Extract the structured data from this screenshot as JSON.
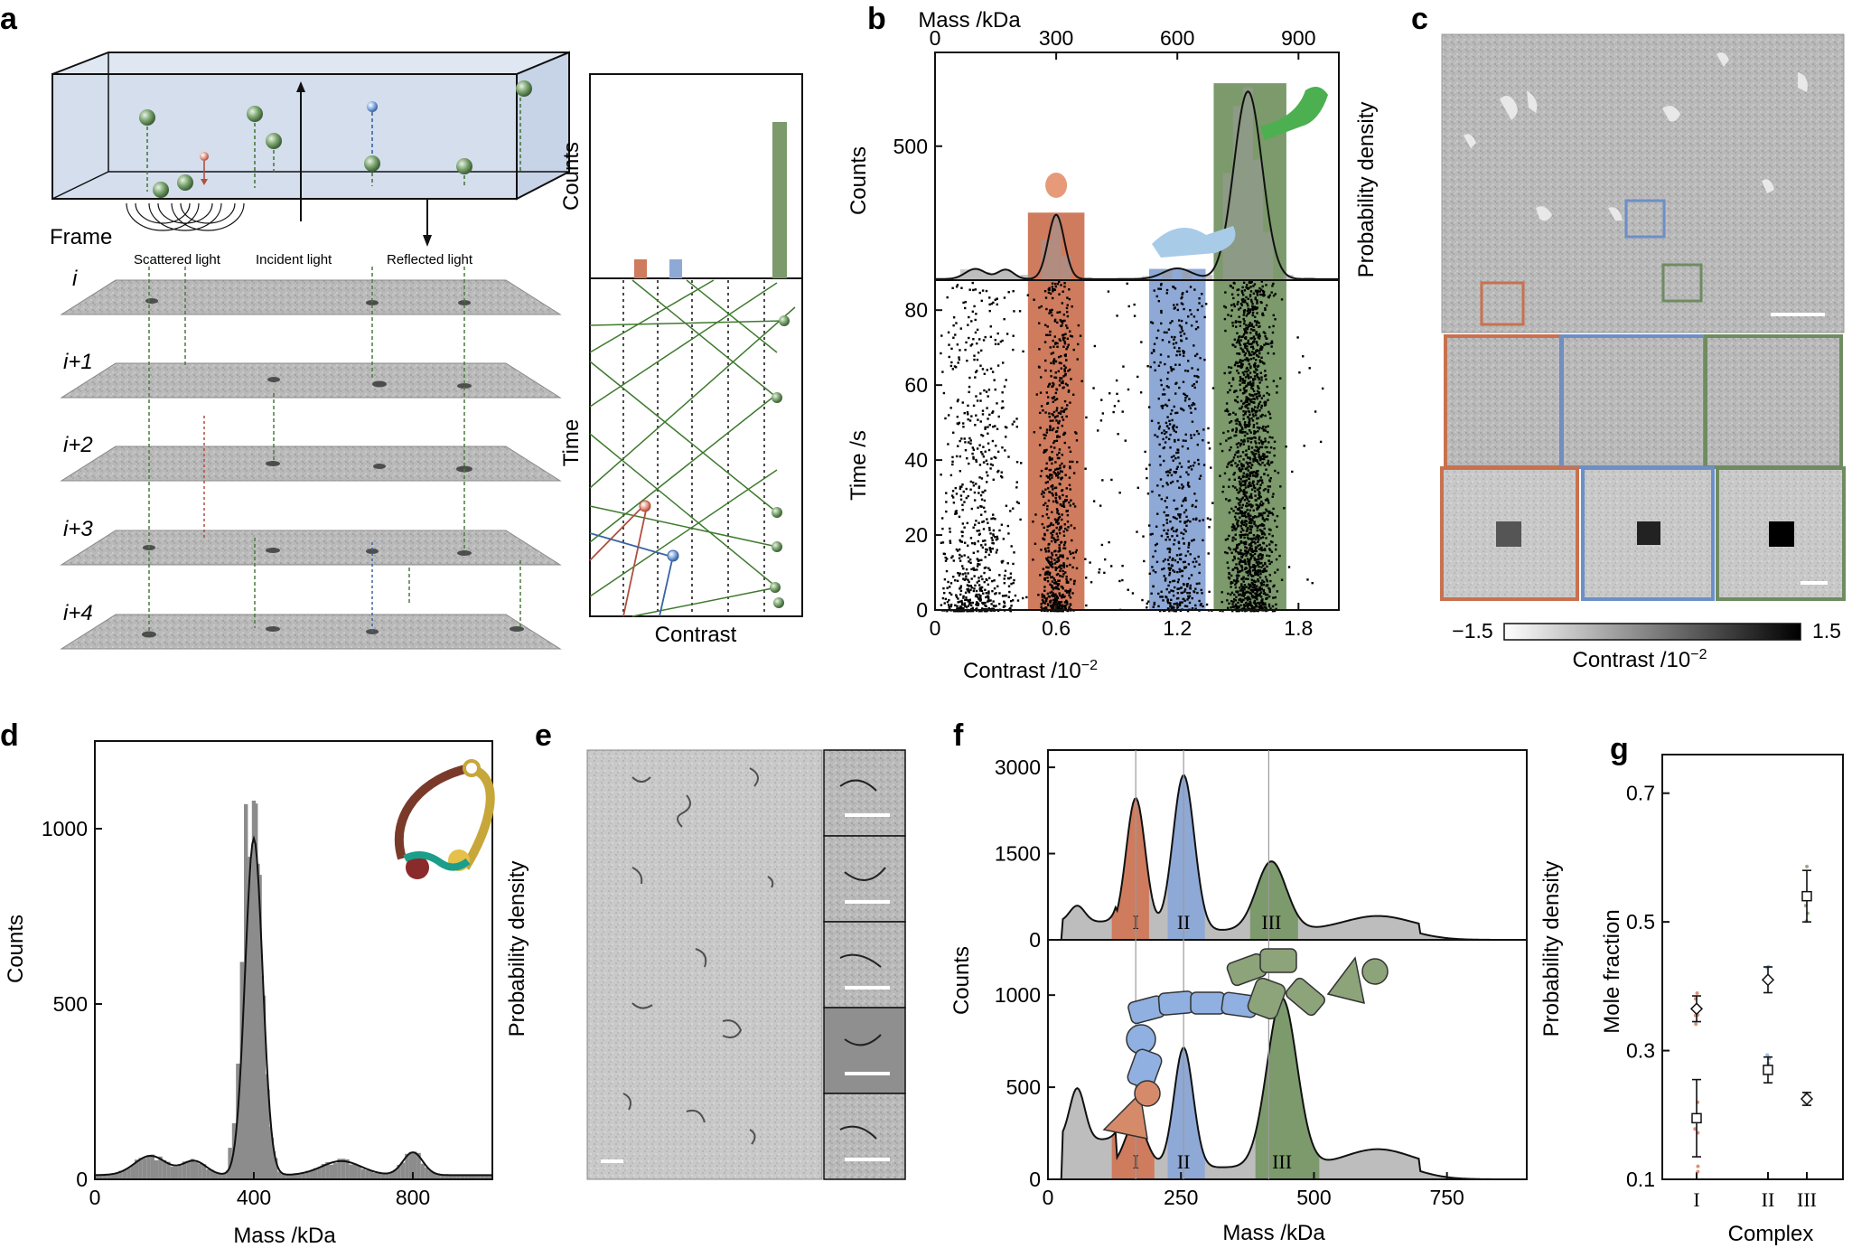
{
  "panels": {
    "a": {
      "label": "a",
      "frame_label": "Frame",
      "scattered_light": "Scattered light",
      "incident_light": "Incident light",
      "reflected_light": "Reflected light",
      "frames": [
        "i",
        "i+1",
        "i+2",
        "i+3",
        "i+4"
      ],
      "counts_label": "Counts",
      "time_label": "Time",
      "contrast_label": "Contrast"
    },
    "b": {
      "label": "b"
    },
    "c": {
      "label": "c",
      "colorbar_min": "−1.5",
      "colorbar_max": "1.5",
      "colorbar_label": "Contrast /10",
      "colorbar_exp": "−2"
    },
    "d": {
      "label": "d"
    },
    "e": {
      "label": "e"
    },
    "f": {
      "label": "f"
    },
    "g": {
      "label": "g"
    }
  },
  "chart_data": [
    {
      "id": "b-hist",
      "type": "bar",
      "top_axis_label": "Mass /kDa",
      "top_ticks": [
        "0",
        "300",
        "600",
        "900"
      ],
      "ylabel": "Counts",
      "y2label": "Probability density",
      "y_ticks": [
        500
      ],
      "ylim": [
        0,
        850
      ],
      "xlim": [
        0,
        2.0
      ],
      "bin_centers": [
        0.15,
        0.25,
        0.35,
        0.45,
        0.55,
        0.6,
        0.65,
        0.75,
        0.85,
        0.95,
        1.05,
        1.15,
        1.25,
        1.35,
        1.45,
        1.5,
        1.55,
        1.6,
        1.65,
        1.75,
        1.85,
        1.95
      ],
      "counts": [
        40,
        30,
        40,
        20,
        150,
        240,
        90,
        10,
        5,
        5,
        15,
        40,
        30,
        20,
        400,
        650,
        720,
        450,
        180,
        20,
        10,
        5
      ],
      "highlight_bands": [
        {
          "name": "red",
          "from": 0.46,
          "to": 0.74,
          "color": "#cf7b5e"
        },
        {
          "name": "blue",
          "from": 1.06,
          "to": 1.34,
          "color": "#8fa9d6"
        },
        {
          "name": "green",
          "from": 1.38,
          "to": 1.74,
          "color": "#7c9a6c"
        }
      ],
      "fit_peaks": [
        {
          "x": 0.6,
          "height": 240,
          "width": 0.04
        },
        {
          "x": 1.2,
          "height": 40,
          "width": 0.07
        },
        {
          "x": 1.55,
          "height": 700,
          "width": 0.07
        },
        {
          "x": 0.2,
          "height": 38,
          "width": 0.05
        },
        {
          "x": 0.35,
          "height": 35,
          "width": 0.04
        }
      ]
    },
    {
      "id": "b-scatter",
      "type": "scatter",
      "xlabel": "Contrast /10",
      "xlabel_exp": "−2",
      "ylabel": "Time /s",
      "x_ticks": [
        "0",
        "0.6",
        "1.2",
        "1.8"
      ],
      "x_tick_values": [
        0,
        0.6,
        1.2,
        1.8
      ],
      "y_ticks": [
        "0",
        "20",
        "40",
        "60",
        "80"
      ],
      "y_tick_values": [
        0,
        20,
        40,
        60,
        80
      ],
      "xlim": [
        0,
        2.0
      ],
      "ylim": [
        0,
        88
      ]
    },
    {
      "id": "d",
      "type": "bar",
      "xlabel": "Mass /kDa",
      "ylabel": "Counts",
      "y2label": "Probability density",
      "x_ticks": [
        "0",
        "400",
        "800"
      ],
      "x_tick_values": [
        0,
        400,
        800
      ],
      "y_ticks": [
        "0",
        "500",
        "1000"
      ],
      "y_tick_values": [
        0,
        500,
        1000
      ],
      "xlim": [
        0,
        1000
      ],
      "ylim": [
        0,
        1250
      ],
      "bins": [
        [
          380,
          1070
        ],
        [
          390,
          920
        ],
        [
          400,
          1080
        ],
        [
          410,
          900
        ],
        [
          370,
          620
        ],
        [
          420,
          580
        ],
        [
          360,
          330
        ],
        [
          430,
          300
        ],
        [
          350,
          160
        ],
        [
          440,
          150
        ],
        [
          340,
          90
        ],
        [
          450,
          80
        ]
      ],
      "fit": {
        "center": 400,
        "height": 960,
        "width": 22
      },
      "bumps": [
        {
          "x": 140,
          "h": 55,
          "w": 40
        },
        {
          "x": 250,
          "h": 40,
          "w": 30
        },
        {
          "x": 620,
          "h": 40,
          "w": 50
        },
        {
          "x": 800,
          "h": 65,
          "w": 25
        }
      ]
    },
    {
      "id": "f-top",
      "type": "area",
      "y_ticks": [
        "0",
        "1500",
        "3000"
      ],
      "y_tick_values": [
        0,
        1500,
        3000
      ],
      "ylim": [
        0,
        3300
      ],
      "xlim": [
        0,
        900
      ],
      "ylabel": "Counts",
      "y2label": "Probability density",
      "peaks": [
        {
          "label": "I",
          "x": 165,
          "h": 2300,
          "w": 18,
          "band": [
            120,
            190
          ],
          "color": "#cf7b5e"
        },
        {
          "label": "II",
          "x": 255,
          "h": 2700,
          "w": 20,
          "band": [
            225,
            295
          ],
          "color": "#8fa9d6"
        },
        {
          "label": "III",
          "x": 420,
          "h": 1200,
          "w": 28,
          "band": [
            380,
            470
          ],
          "color": "#7c9a6c"
        }
      ]
    },
    {
      "id": "f-bottom",
      "type": "area",
      "xlabel": "Mass /kDa",
      "x_ticks": [
        "0",
        "250",
        "500",
        "750"
      ],
      "x_tick_values": [
        0,
        250,
        500,
        750
      ],
      "y_ticks": [
        "0",
        "500",
        "1000"
      ],
      "y_tick_values": [
        0,
        500,
        1000
      ],
      "ylim": [
        0,
        1300
      ],
      "xlim": [
        0,
        900
      ],
      "peaks": [
        {
          "label": "I",
          "x": 165,
          "h": 250,
          "w": 20,
          "band": [
            120,
            200
          ],
          "color": "#cf7b5e"
        },
        {
          "label": "II",
          "x": 255,
          "h": 650,
          "w": 18,
          "band": [
            225,
            295
          ],
          "color": "#8fa9d6"
        },
        {
          "label": "III",
          "x": 440,
          "h": 920,
          "w": 28,
          "band": [
            390,
            510
          ],
          "color": "#7c9a6c"
        }
      ]
    },
    {
      "id": "g",
      "type": "scatter",
      "xlabel": "Complex",
      "ylabel": "Mole fraction",
      "categories": [
        "I",
        "II",
        "III"
      ],
      "y_ticks": [
        "0.1",
        "0.3",
        "0.5",
        "0.7"
      ],
      "y_tick_values": [
        0.1,
        0.3,
        0.5,
        0.7
      ],
      "ylim": [
        0.1,
        0.76
      ],
      "series": [
        {
          "marker": "diamond",
          "values": [
            0.365,
            0.41,
            0.225
          ],
          "err": [
            0.02,
            0.02,
            0.01
          ]
        },
        {
          "marker": "square",
          "values": [
            0.195,
            0.27,
            0.54
          ],
          "err": [
            0.06,
            0.02,
            0.04
          ]
        }
      ]
    }
  ]
}
